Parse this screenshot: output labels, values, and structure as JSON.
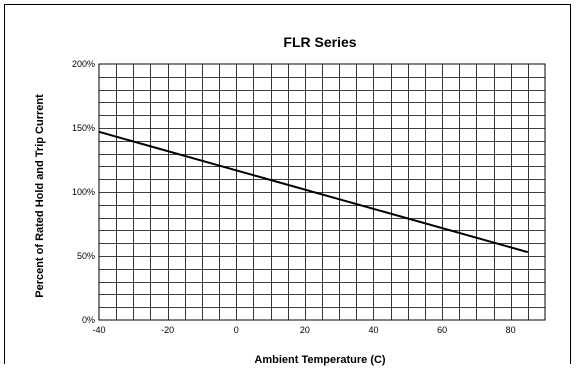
{
  "chart_data": {
    "type": "line",
    "title": "FLR Series",
    "xlabel": "Ambient Temperature (C)",
    "ylabel": "Percent of Rated Hold and Trip Current",
    "xlim": [
      -40,
      90
    ],
    "ylim": [
      0,
      200
    ],
    "x_ticks": [
      -40,
      -20,
      0,
      20,
      40,
      60,
      80
    ],
    "x_tick_labels": [
      "-40",
      "-20",
      "0",
      "20",
      "40",
      "60",
      "80"
    ],
    "y_ticks": [
      0,
      50,
      100,
      150,
      200
    ],
    "y_tick_labels": [
      "0%",
      "50%",
      "100%",
      "150%",
      "200%"
    ],
    "x_minor_step": 5,
    "y_minor_step": 10,
    "grid": true,
    "legend": "none",
    "series": [
      {
        "x": [
          -40,
          85
        ],
        "y": [
          147,
          53
        ],
        "color": "#000000"
      }
    ]
  }
}
